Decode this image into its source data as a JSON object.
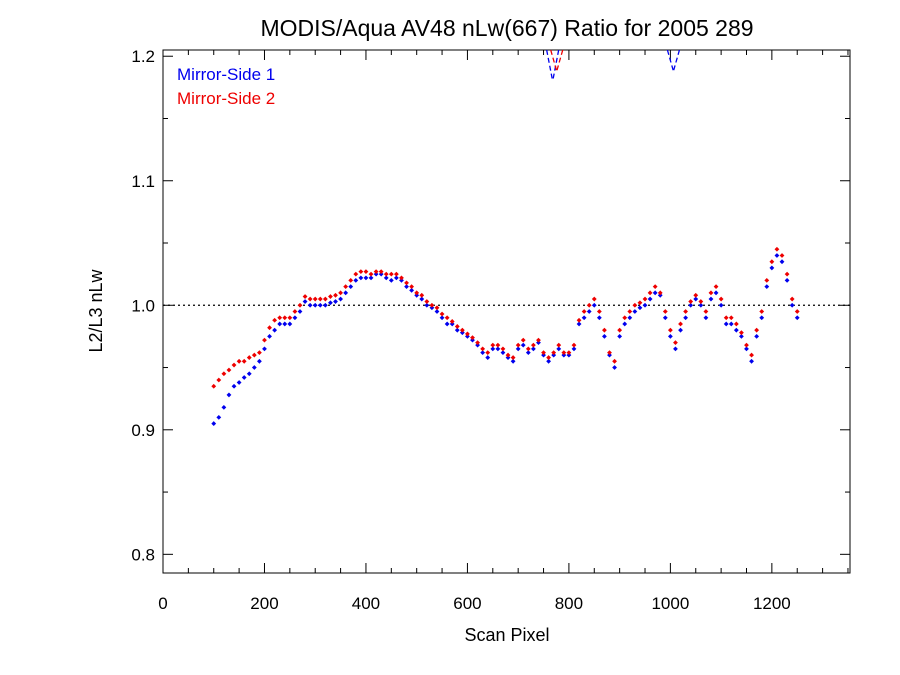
{
  "chart_data": {
    "type": "scatter",
    "title": "MODIS/Aqua AV48 nLw(667) Ratio for 2005 289",
    "xlabel": "Scan Pixel",
    "ylabel": "L2/L3 nLw",
    "xlim": [
      0,
      1354
    ],
    "ylim": [
      0.785,
      1.205
    ],
    "x_ticks": [
      0,
      200,
      400,
      600,
      800,
      1000,
      1200
    ],
    "x_tick_labels": [
      "0",
      "200",
      "400",
      "600",
      "800",
      "1000",
      "1200"
    ],
    "y_ticks": [
      0.8,
      0.9,
      1.0,
      1.1,
      1.2
    ],
    "y_tick_labels": [
      "0.8",
      "0.9",
      "1.0",
      "1.1",
      "1.2"
    ],
    "reference_line": {
      "y": 1.0,
      "style": "dotted",
      "color": "#000000"
    },
    "legend_position": "top-left",
    "grid": false,
    "series": [
      {
        "name": "Mirror-Side 1",
        "color": "#0000ee",
        "x": [
          100,
          110,
          120,
          130,
          140,
          150,
          160,
          170,
          180,
          190,
          200,
          210,
          220,
          230,
          240,
          250,
          260,
          270,
          280,
          290,
          300,
          310,
          320,
          330,
          340,
          350,
          360,
          370,
          380,
          390,
          400,
          410,
          420,
          430,
          440,
          450,
          460,
          470,
          480,
          490,
          500,
          510,
          520,
          530,
          540,
          550,
          560,
          570,
          580,
          590,
          600,
          610,
          620,
          630,
          640,
          650,
          660,
          670,
          680,
          690,
          700,
          710,
          720,
          730,
          740,
          750,
          760,
          770,
          780,
          790,
          800,
          810,
          820,
          830,
          840,
          850,
          860,
          870,
          880,
          890,
          900,
          910,
          920,
          930,
          940,
          950,
          960,
          970,
          980,
          990,
          1000,
          1010,
          1020,
          1030,
          1040,
          1050,
          1060,
          1070,
          1080,
          1090,
          1100,
          1110,
          1120,
          1130,
          1140,
          1150,
          1160,
          1170,
          1180,
          1190,
          1200,
          1210,
          1220,
          1230,
          1240,
          1250
        ],
        "y": [
          0.905,
          0.91,
          0.918,
          0.928,
          0.935,
          0.938,
          0.942,
          0.945,
          0.95,
          0.955,
          0.965,
          0.975,
          0.98,
          0.985,
          0.985,
          0.985,
          0.99,
          0.995,
          1.003,
          1.0,
          1.0,
          1.0,
          1.0,
          1.002,
          1.003,
          1.005,
          1.01,
          1.015,
          1.02,
          1.022,
          1.022,
          1.022,
          1.025,
          1.025,
          1.022,
          1.02,
          1.022,
          1.02,
          1.015,
          1.012,
          1.008,
          1.005,
          1.0,
          0.998,
          0.995,
          0.99,
          0.985,
          0.985,
          0.98,
          0.978,
          0.975,
          0.972,
          0.968,
          0.962,
          0.958,
          0.965,
          0.965,
          0.962,
          0.958,
          0.955,
          0.965,
          0.968,
          0.962,
          0.965,
          0.97,
          0.96,
          0.955,
          0.96,
          0.965,
          0.96,
          0.96,
          0.965,
          0.985,
          0.99,
          0.995,
          1.0,
          0.99,
          0.975,
          0.96,
          0.95,
          0.975,
          0.985,
          0.99,
          0.995,
          0.998,
          1.0,
          1.005,
          1.01,
          1.008,
          0.99,
          0.975,
          0.965,
          0.98,
          0.99,
          1.0,
          1.005,
          1.0,
          0.99,
          1.005,
          1.01,
          1.0,
          0.985,
          0.985,
          0.98,
          0.975,
          0.965,
          0.955,
          0.975,
          0.99,
          1.015,
          1.03,
          1.04,
          1.035,
          1.02,
          1.0,
          0.99
        ]
      },
      {
        "name": "Mirror-Side 2",
        "color": "#ee0000",
        "x": [
          100,
          110,
          120,
          130,
          140,
          150,
          160,
          170,
          180,
          190,
          200,
          210,
          220,
          230,
          240,
          250,
          260,
          270,
          280,
          290,
          300,
          310,
          320,
          330,
          340,
          350,
          360,
          370,
          380,
          390,
          400,
          410,
          420,
          430,
          440,
          450,
          460,
          470,
          480,
          490,
          500,
          510,
          520,
          530,
          540,
          550,
          560,
          570,
          580,
          590,
          600,
          610,
          620,
          630,
          640,
          650,
          660,
          670,
          680,
          690,
          700,
          710,
          720,
          730,
          740,
          750,
          760,
          770,
          780,
          790,
          800,
          810,
          820,
          830,
          840,
          850,
          860,
          870,
          880,
          890,
          900,
          910,
          920,
          930,
          940,
          950,
          960,
          970,
          980,
          990,
          1000,
          1010,
          1020,
          1030,
          1040,
          1050,
          1060,
          1070,
          1080,
          1090,
          1100,
          1110,
          1120,
          1130,
          1140,
          1150,
          1160,
          1170,
          1180,
          1190,
          1200,
          1210,
          1220,
          1230,
          1240,
          1250
        ],
        "y": [
          0.935,
          0.94,
          0.945,
          0.948,
          0.952,
          0.955,
          0.955,
          0.958,
          0.96,
          0.962,
          0.972,
          0.982,
          0.988,
          0.99,
          0.99,
          0.99,
          0.995,
          1.0,
          1.007,
          1.005,
          1.005,
          1.005,
          1.005,
          1.007,
          1.008,
          1.01,
          1.015,
          1.02,
          1.025,
          1.027,
          1.027,
          1.025,
          1.027,
          1.027,
          1.025,
          1.025,
          1.025,
          1.022,
          1.018,
          1.015,
          1.01,
          1.008,
          1.003,
          1.0,
          0.998,
          0.993,
          0.99,
          0.987,
          0.983,
          0.98,
          0.977,
          0.974,
          0.97,
          0.965,
          0.962,
          0.968,
          0.968,
          0.965,
          0.96,
          0.958,
          0.968,
          0.972,
          0.965,
          0.968,
          0.972,
          0.962,
          0.958,
          0.962,
          0.968,
          0.962,
          0.962,
          0.968,
          0.988,
          0.995,
          1.0,
          1.005,
          0.995,
          0.98,
          0.962,
          0.955,
          0.98,
          0.99,
          0.995,
          1.0,
          1.002,
          1.005,
          1.01,
          1.015,
          1.01,
          0.995,
          0.98,
          0.97,
          0.985,
          0.995,
          1.003,
          1.008,
          1.003,
          0.995,
          1.01,
          1.015,
          1.005,
          0.99,
          0.99,
          0.985,
          0.978,
          0.968,
          0.96,
          0.98,
          0.995,
          1.02,
          1.035,
          1.045,
          1.04,
          1.025,
          1.005,
          0.995
        ]
      }
    ],
    "offscale_markers": [
      {
        "series": "Mirror-Side 1",
        "x": 768,
        "y_min": 1.18
      },
      {
        "series": "Mirror-Side 2",
        "x": 776,
        "y_min": 1.188
      },
      {
        "series": "Mirror-Side 1",
        "x": 1006,
        "y_min": 1.188
      }
    ]
  }
}
